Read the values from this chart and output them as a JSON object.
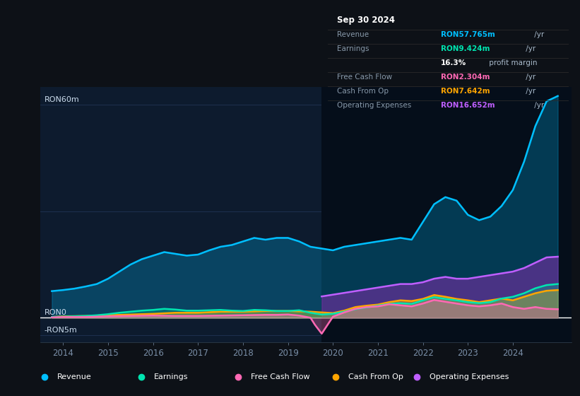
{
  "bg_color": "#0d1117",
  "plot_bg_color": "#0d1b2e",
  "title": "Sep 30 2024",
  "ylabel_top": "RON60m",
  "ylabel_zero": "RON0",
  "ylabel_bottom": "-RON5m",
  "xlim": [
    2013.5,
    2025.3
  ],
  "ylim": [
    -7,
    65
  ],
  "xticks": [
    2014,
    2015,
    2016,
    2017,
    2018,
    2019,
    2020,
    2021,
    2022,
    2023,
    2024
  ],
  "grid_color": "#1e3050",
  "hline_color": "#ffffff",
  "revenue_color": "#00bfff",
  "earnings_color": "#00e5b0",
  "fcf_color": "#ff69b4",
  "cashfromop_color": "#ffa500",
  "opex_color": "#bf5fff",
  "shaded_region_start": 2019.75,
  "shaded_region_color": "#050e1a",
  "revenue_x": [
    2013.75,
    2014.0,
    2014.25,
    2014.5,
    2014.75,
    2015.0,
    2015.25,
    2015.5,
    2015.75,
    2016.0,
    2016.25,
    2016.5,
    2016.75,
    2017.0,
    2017.25,
    2017.5,
    2017.75,
    2018.0,
    2018.25,
    2018.5,
    2018.75,
    2019.0,
    2019.25,
    2019.5,
    2019.75,
    2020.0,
    2020.25,
    2020.5,
    2020.75,
    2021.0,
    2021.25,
    2021.5,
    2021.75,
    2022.0,
    2022.25,
    2022.5,
    2022.75,
    2023.0,
    2023.25,
    2023.5,
    2023.75,
    2024.0,
    2024.25,
    2024.5,
    2024.75,
    2025.0
  ],
  "revenue_y": [
    7.5,
    7.8,
    8.2,
    8.8,
    9.5,
    11.0,
    13.0,
    15.0,
    16.5,
    17.5,
    18.5,
    18.0,
    17.5,
    17.8,
    19.0,
    20.0,
    20.5,
    21.5,
    22.5,
    22.0,
    22.5,
    22.5,
    21.5,
    20.0,
    19.5,
    19.0,
    20.0,
    20.5,
    21.0,
    21.5,
    22.0,
    22.5,
    22.0,
    27.0,
    32.0,
    34.0,
    33.0,
    29.0,
    27.5,
    28.5,
    31.5,
    36.0,
    44.0,
    54.0,
    61.0,
    62.5
  ],
  "earnings_x": [
    2013.75,
    2014.0,
    2014.25,
    2014.5,
    2014.75,
    2015.0,
    2015.25,
    2015.5,
    2015.75,
    2016.0,
    2016.25,
    2016.5,
    2016.75,
    2017.0,
    2017.25,
    2017.5,
    2017.75,
    2018.0,
    2018.25,
    2018.5,
    2018.75,
    2019.0,
    2019.25,
    2019.5,
    2019.75,
    2020.0,
    2020.25,
    2020.5,
    2020.75,
    2021.0,
    2021.25,
    2021.5,
    2021.75,
    2022.0,
    2022.25,
    2022.5,
    2022.75,
    2023.0,
    2023.25,
    2023.5,
    2023.75,
    2024.0,
    2024.25,
    2024.5,
    2024.75,
    2025.0
  ],
  "earnings_y": [
    0.2,
    0.3,
    0.4,
    0.5,
    0.7,
    1.0,
    1.4,
    1.7,
    2.0,
    2.2,
    2.5,
    2.3,
    2.0,
    2.0,
    2.1,
    2.2,
    2.0,
    1.9,
    2.2,
    2.1,
    1.9,
    1.9,
    2.1,
    1.4,
    0.9,
    1.1,
    1.7,
    2.4,
    2.9,
    3.4,
    3.9,
    4.1,
    3.9,
    4.9,
    5.8,
    5.3,
    4.9,
    4.4,
    4.1,
    4.4,
    5.4,
    5.9,
    6.9,
    8.3,
    9.2,
    9.5
  ],
  "fcf_x": [
    2013.75,
    2014.0,
    2014.5,
    2015.0,
    2015.5,
    2016.0,
    2016.5,
    2017.0,
    2017.5,
    2018.0,
    2018.5,
    2018.75,
    2019.0,
    2019.25,
    2019.5,
    2019.6,
    2019.75,
    2020.0,
    2020.25,
    2020.5,
    2020.75,
    2021.0,
    2021.25,
    2021.5,
    2021.75,
    2022.0,
    2022.25,
    2022.5,
    2022.75,
    2023.0,
    2023.25,
    2023.5,
    2023.75,
    2024.0,
    2024.25,
    2024.5,
    2024.75,
    2025.0
  ],
  "fcf_y": [
    0.1,
    0.2,
    0.2,
    0.4,
    0.5,
    0.6,
    0.5,
    0.5,
    0.6,
    0.7,
    0.8,
    0.8,
    0.9,
    0.6,
    0.0,
    -2.0,
    -4.5,
    0.3,
    1.5,
    2.5,
    3.0,
    3.2,
    3.8,
    3.5,
    3.2,
    4.0,
    5.0,
    4.5,
    4.0,
    3.5,
    3.2,
    3.5,
    4.0,
    3.0,
    2.5,
    3.0,
    2.5,
    2.4
  ],
  "cashfromop_x": [
    2013.75,
    2014.0,
    2014.5,
    2015.0,
    2015.5,
    2016.0,
    2016.5,
    2017.0,
    2017.5,
    2018.0,
    2018.5,
    2019.0,
    2019.5,
    2019.75,
    2020.0,
    2020.25,
    2020.5,
    2020.75,
    2021.0,
    2021.25,
    2021.5,
    2021.75,
    2022.0,
    2022.25,
    2022.5,
    2022.75,
    2023.0,
    2023.25,
    2023.5,
    2023.75,
    2024.0,
    2024.25,
    2024.5,
    2024.75,
    2025.0
  ],
  "cashfromop_y": [
    0.2,
    0.4,
    0.5,
    0.7,
    0.9,
    1.1,
    1.4,
    1.4,
    1.7,
    1.7,
    1.9,
    1.9,
    1.7,
    1.5,
    1.3,
    2.0,
    3.0,
    3.4,
    3.7,
    4.4,
    4.9,
    4.7,
    5.3,
    6.4,
    5.9,
    5.3,
    4.9,
    4.4,
    4.9,
    5.4,
    4.9,
    5.9,
    6.9,
    7.6,
    7.8
  ],
  "opex_x": [
    2019.75,
    2020.0,
    2020.25,
    2020.5,
    2020.75,
    2021.0,
    2021.25,
    2021.5,
    2021.75,
    2022.0,
    2022.25,
    2022.5,
    2022.75,
    2023.0,
    2023.25,
    2023.5,
    2023.75,
    2024.0,
    2024.25,
    2024.5,
    2024.75,
    2025.0
  ],
  "opex_y": [
    6.0,
    6.5,
    7.0,
    7.5,
    8.0,
    8.5,
    9.0,
    9.5,
    9.5,
    10.0,
    11.0,
    11.5,
    11.0,
    11.0,
    11.5,
    12.0,
    12.5,
    13.0,
    14.0,
    15.5,
    17.0,
    17.2
  ],
  "info_box_rows": [
    {
      "label": "Revenue",
      "value": "RON57.765m",
      "value_color": "#00bfff",
      "suffix": " /yr"
    },
    {
      "label": "Earnings",
      "value": "RON9.424m",
      "value_color": "#00e5b0",
      "suffix": " /yr"
    },
    {
      "label": "",
      "value": "16.3%",
      "value_color": "#ffffff",
      "suffix": " profit margin"
    },
    {
      "label": "Free Cash Flow",
      "value": "RON2.304m",
      "value_color": "#ff69b4",
      "suffix": " /yr"
    },
    {
      "label": "Cash From Op",
      "value": "RON7.642m",
      "value_color": "#ffa500",
      "suffix": " /yr"
    },
    {
      "label": "Operating Expenses",
      "value": "RON16.652m",
      "value_color": "#bf5fff",
      "suffix": " /yr"
    }
  ],
  "legend": [
    {
      "label": "Revenue",
      "color": "#00bfff"
    },
    {
      "label": "Earnings",
      "color": "#00e5b0"
    },
    {
      "label": "Free Cash Flow",
      "color": "#ff69b4"
    },
    {
      "label": "Cash From Op",
      "color": "#ffa500"
    },
    {
      "label": "Operating Expenses",
      "color": "#bf5fff"
    }
  ]
}
